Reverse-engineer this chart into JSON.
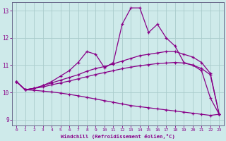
{
  "xlabel": "Windchill (Refroidissement éolien,°C)",
  "background_color": "#ceeaea",
  "line_color": "#880088",
  "grid_color": "#aacccc",
  "xlim": [
    -0.5,
    23.5
  ],
  "ylim": [
    8.8,
    13.3
  ],
  "xticks": [
    0,
    1,
    2,
    3,
    4,
    5,
    6,
    7,
    8,
    9,
    10,
    11,
    12,
    13,
    14,
    15,
    16,
    17,
    18,
    19,
    20,
    21,
    22,
    23
  ],
  "yticks": [
    9,
    10,
    11,
    12,
    13
  ],
  "series": [
    {
      "x": [
        0,
        1,
        2,
        3,
        4,
        5,
        6,
        7,
        8,
        9,
        10,
        11,
        12,
        13,
        14,
        15,
        16,
        17,
        18,
        19,
        20,
        21,
        22,
        23
      ],
      "y": [
        10.4,
        10.1,
        10.15,
        10.25,
        10.4,
        10.6,
        10.8,
        11.1,
        11.5,
        11.4,
        10.9,
        11.1,
        12.5,
        13.1,
        13.1,
        12.2,
        12.5,
        12.0,
        11.7,
        11.1,
        11.0,
        10.8,
        9.8,
        9.2
      ]
    },
    {
      "x": [
        0,
        1,
        2,
        3,
        4,
        5,
        6,
        7,
        8,
        9,
        10,
        11,
        12,
        13,
        14,
        15,
        16,
        17,
        18,
        19,
        20,
        21,
        22,
        23
      ],
      "y": [
        10.4,
        10.1,
        10.15,
        10.25,
        10.35,
        10.45,
        10.55,
        10.65,
        10.78,
        10.88,
        10.95,
        11.05,
        11.15,
        11.25,
        11.35,
        11.4,
        11.45,
        11.5,
        11.5,
        11.4,
        11.3,
        11.1,
        10.7,
        9.2
      ]
    },
    {
      "x": [
        0,
        1,
        2,
        3,
        4,
        5,
        6,
        7,
        8,
        9,
        10,
        11,
        12,
        13,
        14,
        15,
        16,
        17,
        18,
        19,
        20,
        21,
        22,
        23
      ],
      "y": [
        10.4,
        10.1,
        10.15,
        10.2,
        10.28,
        10.35,
        10.42,
        10.5,
        10.58,
        10.66,
        10.73,
        10.8,
        10.87,
        10.93,
        10.98,
        11.02,
        11.06,
        11.08,
        11.1,
        11.08,
        11.0,
        10.88,
        10.65,
        9.2
      ]
    },
    {
      "x": [
        0,
        1,
        2,
        3,
        4,
        5,
        6,
        7,
        8,
        9,
        10,
        11,
        12,
        13,
        14,
        15,
        16,
        17,
        18,
        19,
        20,
        21,
        22,
        23
      ],
      "y": [
        10.4,
        10.1,
        10.08,
        10.05,
        10.02,
        9.98,
        9.93,
        9.88,
        9.82,
        9.76,
        9.7,
        9.64,
        9.58,
        9.52,
        9.48,
        9.44,
        9.4,
        9.36,
        9.32,
        9.28,
        9.24,
        9.2,
        9.16,
        9.2
      ]
    }
  ]
}
